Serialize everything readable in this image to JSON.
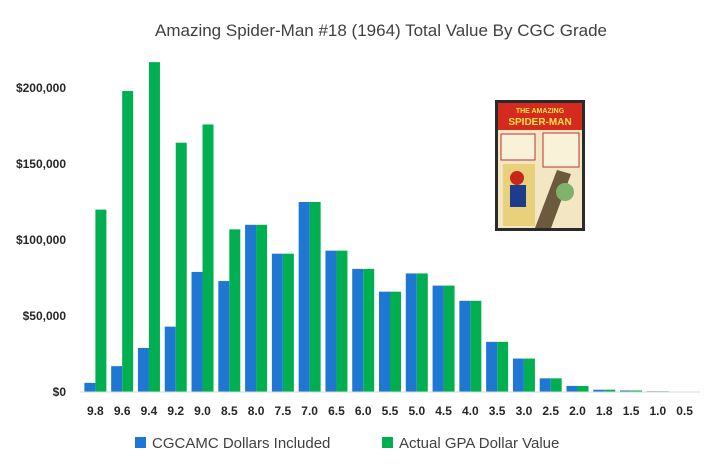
{
  "chart_data": {
    "type": "bar",
    "title": "Amazing Spider-Man #18 (1964) Total Value By CGC Grade",
    "categories": [
      "9.8",
      "9.6",
      "9.4",
      "9.2",
      "9.0",
      "8.5",
      "8.0",
      "7.5",
      "7.0",
      "6.5",
      "6.0",
      "5.5",
      "5.0",
      "4.5",
      "4.0",
      "3.5",
      "3.0",
      "2.5",
      "2.0",
      "1.8",
      "1.5",
      "1.0",
      "0.5"
    ],
    "series": [
      {
        "name": "CGCAMC Dollars Included",
        "color": "#1f77d4",
        "values": [
          6000,
          17000,
          29000,
          43000,
          79000,
          73000,
          110000,
          91000,
          125000,
          93000,
          81000,
          66000,
          78000,
          70000,
          60000,
          33000,
          22000,
          9000,
          4000,
          1500,
          1000,
          500,
          300
        ]
      },
      {
        "name": "Actual GPA Dollar Value",
        "color": "#00b050",
        "values": [
          120000,
          198000,
          217000,
          164000,
          176000,
          107000,
          110000,
          91000,
          125000,
          93000,
          81000,
          66000,
          78000,
          70000,
          60000,
          33000,
          22000,
          9000,
          4000,
          1500,
          1000,
          500,
          300
        ]
      }
    ],
    "yticks": [
      "$0",
      "$50,000",
      "$100,000",
      "$150,000",
      "$200,000"
    ],
    "ylim": [
      0,
      220000
    ],
    "grid": false,
    "legend_position": "bottom"
  },
  "cover_image": {
    "icon": "comic-cover-image",
    "masthead_top": "THE AMAZING",
    "masthead_main": "SPIDER-MAN",
    "colors": {
      "frame": "#2a2a2a",
      "masthead": "#d52a1e",
      "panel": "#e8d17a",
      "building": "#6b5a3e"
    }
  }
}
